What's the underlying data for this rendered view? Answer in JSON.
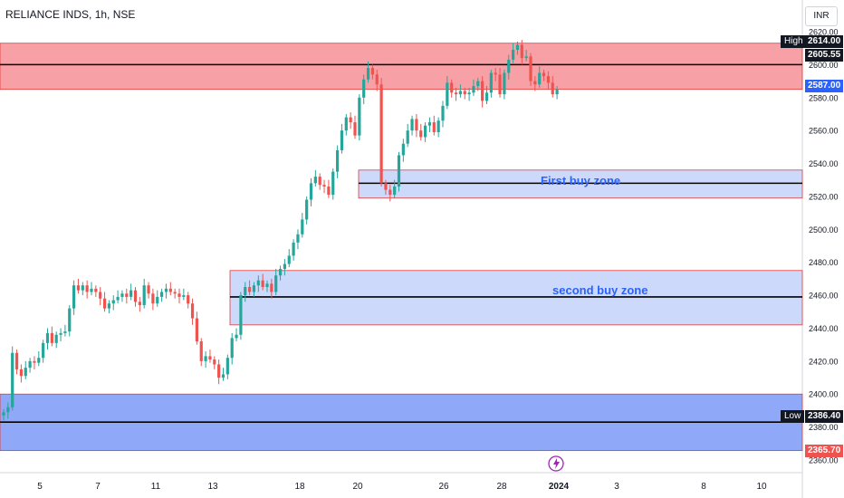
{
  "header": {
    "title": "RELIANCE INDS, 1h, NSE",
    "currency": "INR"
  },
  "colors": {
    "up": "#26a69a",
    "down": "#ef5350",
    "resistance_fill": "#f7a1a7",
    "resistance_border": "#e53935",
    "buy_fill": "#cdd9fb",
    "buy_border": "#e53935",
    "support_fill": "#8fa8f8",
    "line": "#000000",
    "text": "#131722"
  },
  "chart_data": {
    "type": "candlestick",
    "title": "RELIANCE INDS, 1h, NSE",
    "y_range": [
      2357,
      2623
    ],
    "y_ticks": [
      2360,
      2380,
      2400,
      2420,
      2440,
      2460,
      2480,
      2500,
      2520,
      2540,
      2560,
      2580,
      2600,
      2620
    ],
    "x_ticks": [
      "5",
      "7",
      "11",
      "13",
      "18",
      "20",
      "26",
      "28",
      "2024",
      "3",
      "8",
      "10"
    ],
    "zones": [
      {
        "name": "resistance",
        "from": 2585,
        "to": 2613,
        "line": 2600,
        "label": ""
      },
      {
        "name": "First buy zone",
        "from": 2519,
        "to": 2536,
        "line": 2528,
        "label": "First buy zone"
      },
      {
        "name": "second buy zone",
        "from": 2442,
        "to": 2475,
        "line": 2459,
        "label": "second buy zone"
      },
      {
        "name": "support",
        "from": 2365.7,
        "to": 2400,
        "line": 2383,
        "label": ""
      }
    ],
    "price_tags": [
      {
        "label": "High",
        "value": "2614.00"
      },
      {
        "label": "",
        "value": "2605.55"
      },
      {
        "label": "",
        "value": "2587.00"
      },
      {
        "label": "Low",
        "value": "2386.40"
      },
      {
        "label": "",
        "value": "2365.70"
      }
    ],
    "candles_close": [
      2389,
      2392,
      2425,
      2415,
      2411,
      2416,
      2420,
      2419,
      2422,
      2431,
      2437,
      2431,
      2436,
      2437,
      2438,
      2452,
      2466,
      2463,
      2466,
      2462,
      2464,
      2462,
      2458,
      2452,
      2455,
      2457,
      2459,
      2461,
      2459,
      2463,
      2456,
      2454,
      2466,
      2461,
      2455,
      2459,
      2462,
      2464,
      2462,
      2461,
      2459,
      2460,
      2455,
      2446,
      2432,
      2420,
      2423,
      2421,
      2418,
      2410,
      2412,
      2422,
      2434,
      2436,
      2460,
      2465,
      2462,
      2466,
      2469,
      2465,
      2467,
      2462,
      2472,
      2476,
      2479,
      2484,
      2492,
      2497,
      2506,
      2518,
      2528,
      2532,
      2527,
      2526,
      2521,
      2535,
      2548,
      2560,
      2568,
      2565,
      2557,
      2580,
      2591,
      2598,
      2594,
      2588,
      2528,
      2524,
      2521,
      2526,
      2545,
      2552,
      2560,
      2567,
      2560,
      2556,
      2563,
      2565,
      2559,
      2566,
      2575,
      2589,
      2583,
      2582,
      2584,
      2582,
      2583,
      2587,
      2590,
      2578,
      2583,
      2595,
      2594,
      2582,
      2595,
      2603,
      2609,
      2612,
      2604,
      2605,
      2590,
      2588,
      2595,
      2593,
      2589,
      2582,
      2585
    ],
    "logo": "tradingview-logo-icon"
  }
}
